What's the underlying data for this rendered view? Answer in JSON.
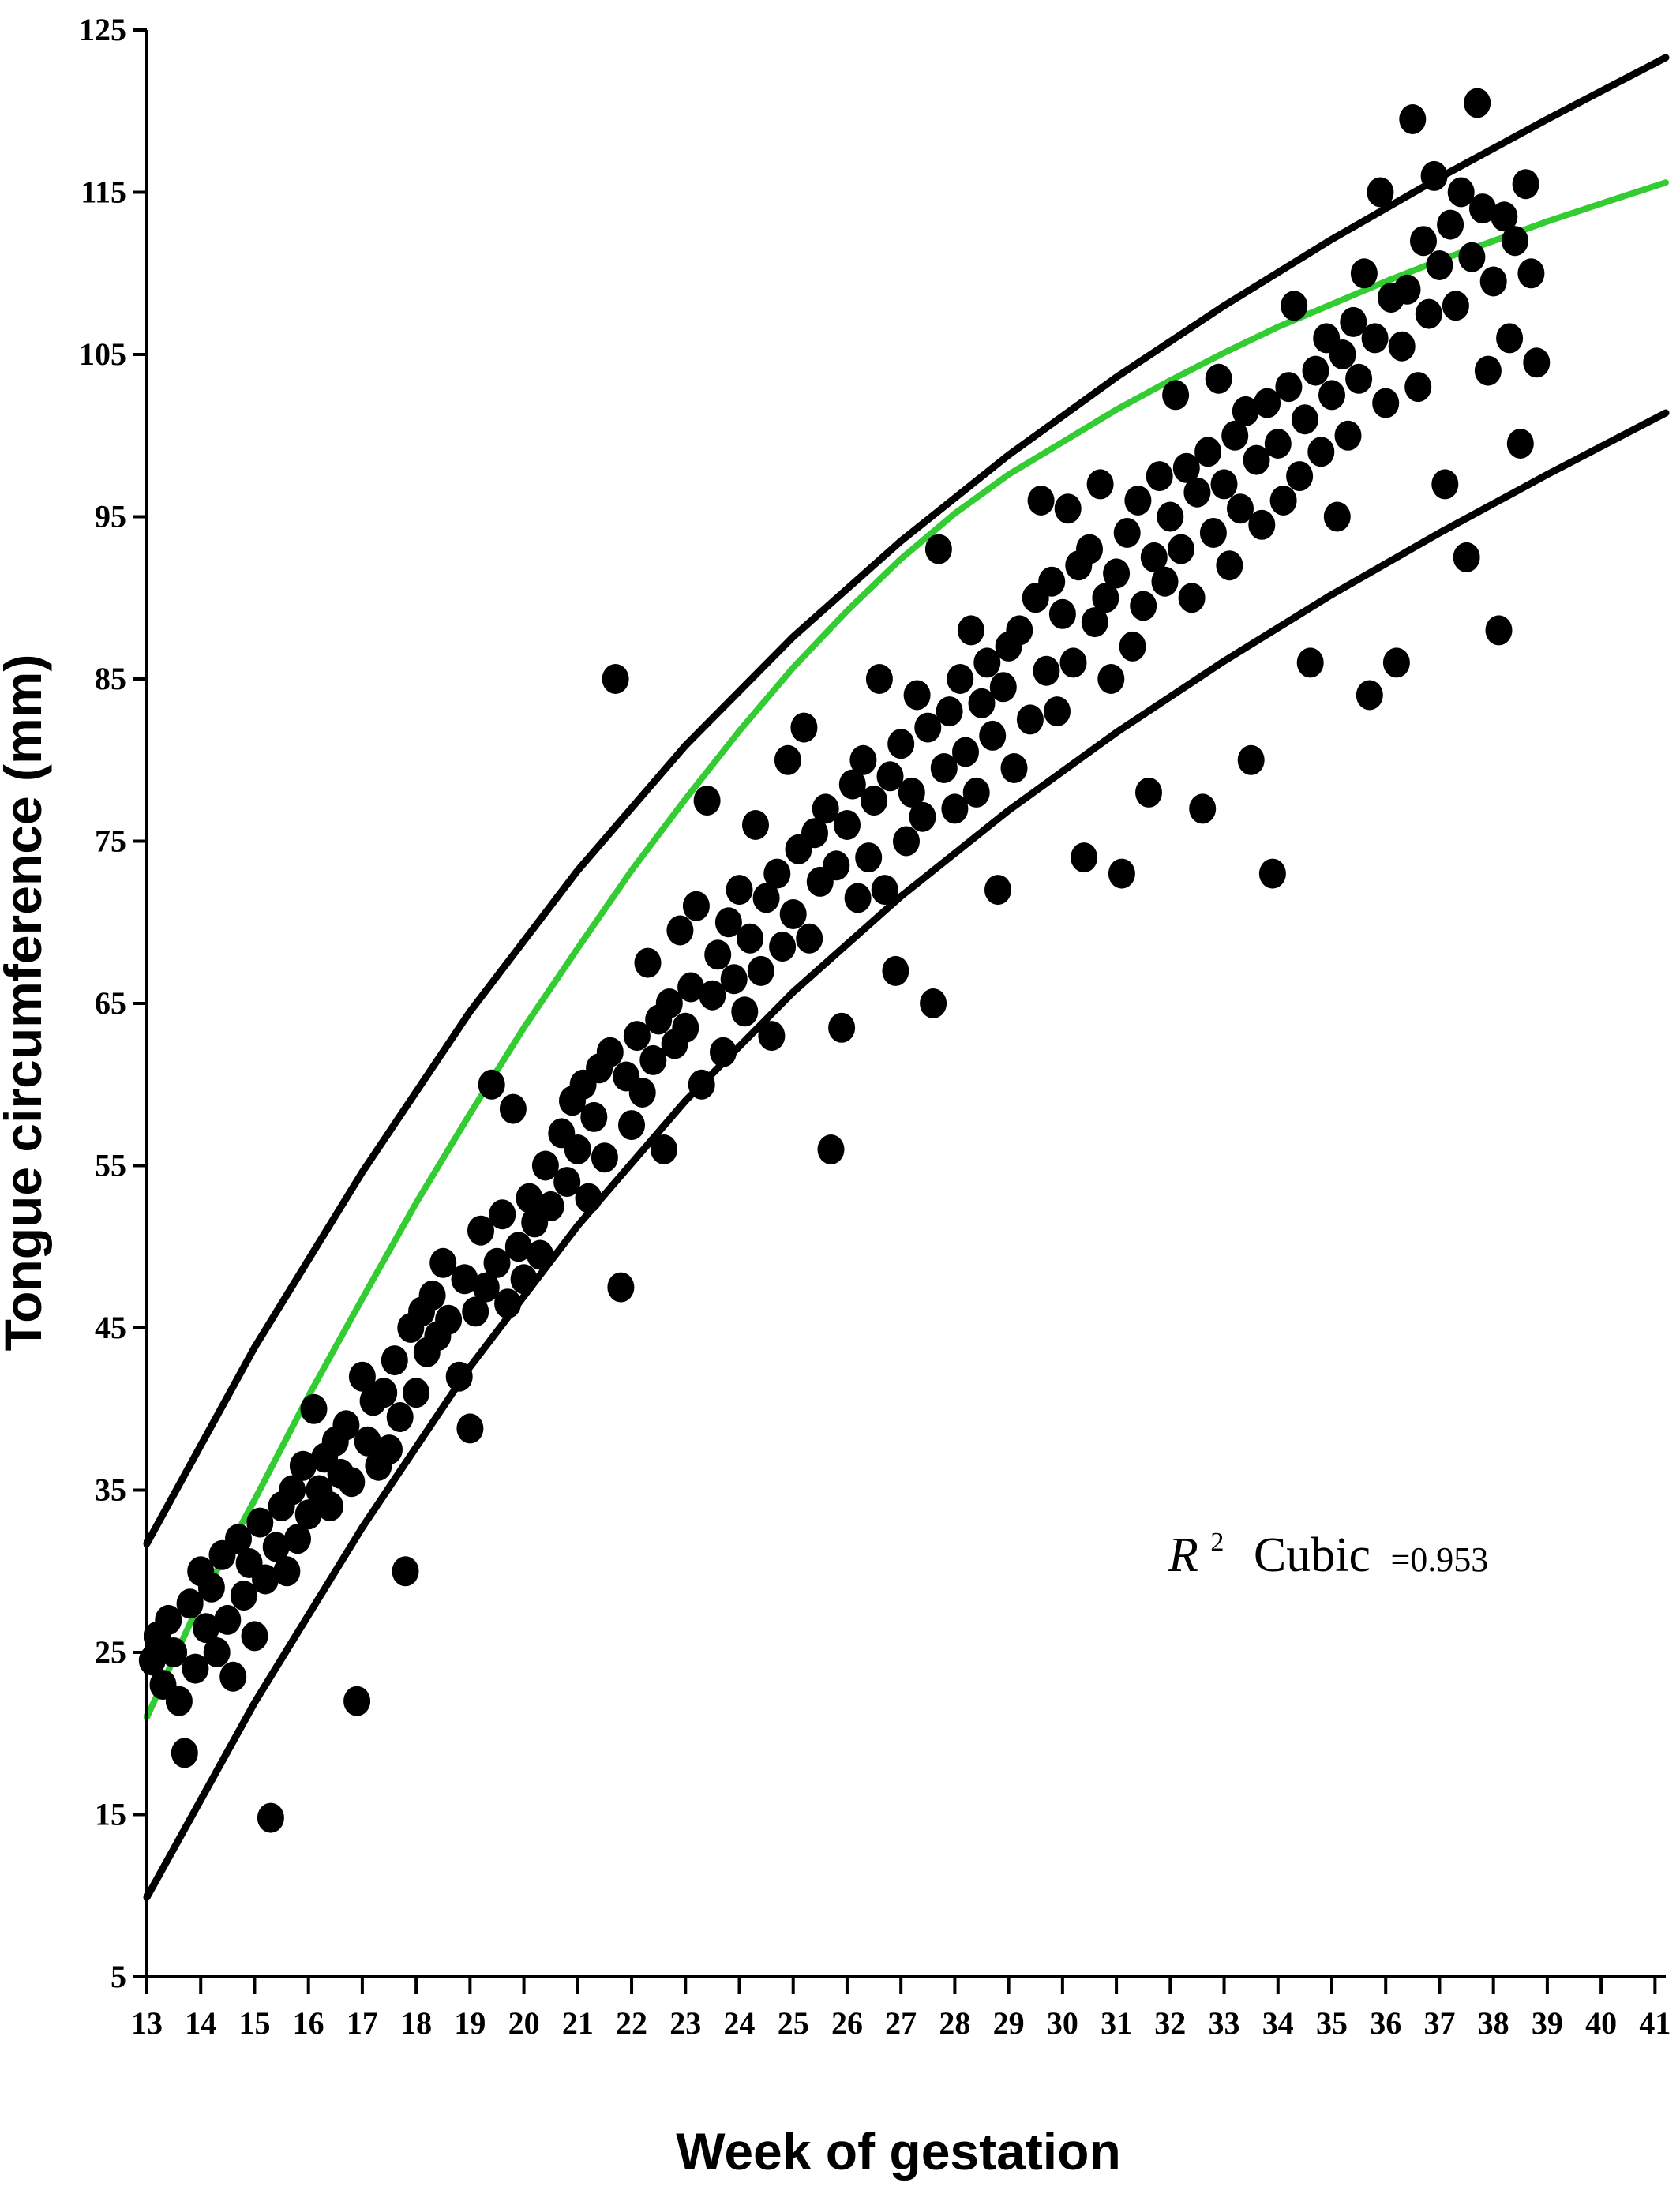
{
  "chart_data": {
    "type": "scatter",
    "title": "",
    "xlabel": "Week of gestation",
    "ylabel": "Tongue circumference (mm)",
    "xlim": [
      13,
      41.2
    ],
    "ylim": [
      5,
      125
    ],
    "x_ticks": [
      13,
      14,
      15,
      16,
      17,
      18,
      19,
      20,
      21,
      22,
      23,
      24,
      25,
      26,
      27,
      28,
      29,
      30,
      31,
      32,
      33,
      34,
      35,
      36,
      37,
      38,
      39,
      40,
      41
    ],
    "y_ticks": [
      5,
      15,
      25,
      35,
      45,
      55,
      65,
      75,
      85,
      95,
      105,
      115,
      125
    ],
    "grid": false,
    "legend": "none",
    "annotation": {
      "r_symbol": "R",
      "superscript": "2",
      "label": "Cubic",
      "value": "=0.953"
    },
    "colors": {
      "points": "#000000",
      "fit_line": "#33cc33",
      "bounds": "#000000"
    },
    "series": [
      {
        "type": "line",
        "role": "cubic fit",
        "color": "#33cc33",
        "x": [
          13,
          14,
          15,
          16,
          17,
          18,
          19,
          20,
          21,
          22,
          23,
          24,
          25,
          26,
          27,
          28,
          29,
          30,
          31,
          32,
          33,
          34,
          35,
          36,
          37,
          38,
          39,
          40,
          41.2
        ],
        "y": [
          21,
          28.2,
          34.4,
          40.8,
          46.8,
          52.7,
          58.2,
          63.5,
          68.4,
          73.2,
          77.6,
          81.8,
          85.7,
          89.2,
          92.4,
          95.2,
          97.6,
          99.6,
          101.6,
          103.4,
          105.1,
          106.7,
          108.1,
          109.5,
          110.8,
          112.0,
          113.2,
          114.3,
          115.6
        ]
      },
      {
        "type": "line",
        "role": "upper bound",
        "color": "#000000",
        "x": [
          13,
          15,
          17,
          19,
          21,
          23,
          25,
          27,
          29,
          31,
          33,
          35,
          37,
          39,
          41.2
        ],
        "y": [
          31.7,
          43.8,
          54.6,
          64.5,
          73.2,
          80.9,
          87.6,
          93.5,
          98.8,
          103.6,
          108.0,
          112.1,
          115.9,
          119.5,
          123.3
        ]
      },
      {
        "type": "line",
        "role": "lower bound",
        "color": "#000000",
        "x": [
          13,
          15,
          17,
          19,
          21,
          23,
          25,
          27,
          29,
          31,
          33,
          35,
          37,
          39,
          41.2
        ],
        "y": [
          9.9,
          21.9,
          32.7,
          42.6,
          51.3,
          59.0,
          65.7,
          71.6,
          76.9,
          81.7,
          86.1,
          90.2,
          94.0,
          97.6,
          101.4
        ]
      },
      {
        "type": "scatter",
        "role": "observations",
        "color": "#000000",
        "points": [
          [
            13.1,
            24.5
          ],
          [
            13.2,
            26
          ],
          [
            13.3,
            23
          ],
          [
            13.4,
            27
          ],
          [
            13.5,
            25
          ],
          [
            13.6,
            22
          ],
          [
            13.7,
            18.8
          ],
          [
            13.8,
            28
          ],
          [
            13.9,
            24
          ],
          [
            14.0,
            30
          ],
          [
            14.1,
            26.5
          ],
          [
            14.2,
            29
          ],
          [
            14.3,
            25
          ],
          [
            14.4,
            31
          ],
          [
            14.5,
            27
          ],
          [
            14.6,
            23.5
          ],
          [
            14.7,
            32
          ],
          [
            14.8,
            28.5
          ],
          [
            14.9,
            30.5
          ],
          [
            15.0,
            26
          ],
          [
            15.1,
            33
          ],
          [
            15.2,
            29.5
          ],
          [
            15.3,
            14.8
          ],
          [
            15.4,
            31.5
          ],
          [
            15.5,
            34
          ],
          [
            15.6,
            30
          ],
          [
            15.7,
            35
          ],
          [
            15.8,
            32
          ],
          [
            15.9,
            36.5
          ],
          [
            16.0,
            33.5
          ],
          [
            16.1,
            40
          ],
          [
            16.2,
            35
          ],
          [
            16.3,
            37
          ],
          [
            16.4,
            34
          ],
          [
            16.5,
            38
          ],
          [
            16.6,
            36
          ],
          [
            16.7,
            39
          ],
          [
            16.8,
            35.5
          ],
          [
            16.9,
            22
          ],
          [
            17.0,
            42
          ],
          [
            17.1,
            38
          ],
          [
            17.2,
            40.5
          ],
          [
            17.3,
            36.5
          ],
          [
            17.4,
            41
          ],
          [
            17.5,
            37.5
          ],
          [
            17.6,
            43
          ],
          [
            17.7,
            39.5
          ],
          [
            17.8,
            30
          ],
          [
            17.9,
            45
          ],
          [
            18.0,
            41
          ],
          [
            18.1,
            46
          ],
          [
            18.2,
            43.5
          ],
          [
            18.3,
            47
          ],
          [
            18.4,
            44.5
          ],
          [
            18.5,
            49
          ],
          [
            18.6,
            45.5
          ],
          [
            18.8,
            42
          ],
          [
            18.9,
            48
          ],
          [
            19.0,
            38.8
          ],
          [
            19.1,
            46
          ],
          [
            19.2,
            51
          ],
          [
            19.3,
            47.5
          ],
          [
            19.4,
            60
          ],
          [
            19.5,
            49
          ],
          [
            19.6,
            52
          ],
          [
            19.7,
            46.5
          ],
          [
            19.8,
            58.5
          ],
          [
            19.9,
            50
          ],
          [
            20.0,
            48
          ],
          [
            20.1,
            53
          ],
          [
            20.2,
            51.5
          ],
          [
            20.3,
            49.5
          ],
          [
            20.4,
            55
          ],
          [
            20.5,
            52.5
          ],
          [
            20.7,
            57
          ],
          [
            20.8,
            54
          ],
          [
            20.9,
            59
          ],
          [
            21.0,
            56
          ],
          [
            21.1,
            60
          ],
          [
            21.2,
            53
          ],
          [
            21.3,
            58
          ],
          [
            21.4,
            61
          ],
          [
            21.5,
            55.5
          ],
          [
            21.6,
            62
          ],
          [
            21.7,
            85
          ],
          [
            21.8,
            47.5
          ],
          [
            21.9,
            60.5
          ],
          [
            22.0,
            57.5
          ],
          [
            22.1,
            63
          ],
          [
            22.2,
            59.5
          ],
          [
            22.3,
            67.5
          ],
          [
            22.4,
            61.5
          ],
          [
            22.5,
            64
          ],
          [
            22.6,
            56
          ],
          [
            22.7,
            65
          ],
          [
            22.8,
            62.5
          ],
          [
            22.9,
            69.5
          ],
          [
            23.0,
            63.5
          ],
          [
            23.1,
            66
          ],
          [
            23.2,
            71
          ],
          [
            23.3,
            60
          ],
          [
            23.4,
            77.5
          ],
          [
            23.5,
            65.5
          ],
          [
            23.6,
            68
          ],
          [
            23.7,
            62
          ],
          [
            23.8,
            70
          ],
          [
            23.9,
            66.5
          ],
          [
            24.0,
            72
          ],
          [
            24.1,
            64.5
          ],
          [
            24.2,
            69
          ],
          [
            24.3,
            76
          ],
          [
            24.4,
            67
          ],
          [
            24.5,
            71.5
          ],
          [
            24.6,
            63
          ],
          [
            24.7,
            73
          ],
          [
            24.8,
            68.5
          ],
          [
            24.9,
            80
          ],
          [
            25.0,
            70.5
          ],
          [
            25.1,
            74.5
          ],
          [
            25.2,
            82
          ],
          [
            25.3,
            69
          ],
          [
            25.4,
            75.5
          ],
          [
            25.5,
            72.5
          ],
          [
            25.6,
            77
          ],
          [
            25.7,
            56
          ],
          [
            25.8,
            73.5
          ],
          [
            25.9,
            63.5
          ],
          [
            26.0,
            76
          ],
          [
            26.1,
            78.5
          ],
          [
            26.2,
            71.5
          ],
          [
            26.3,
            80
          ],
          [
            26.4,
            74
          ],
          [
            26.5,
            77.5
          ],
          [
            26.6,
            85
          ],
          [
            26.7,
            72
          ],
          [
            26.8,
            79
          ],
          [
            26.9,
            67
          ],
          [
            27.0,
            81
          ],
          [
            27.1,
            75
          ],
          [
            27.2,
            78
          ],
          [
            27.3,
            84
          ],
          [
            27.4,
            76.5
          ],
          [
            27.5,
            82
          ],
          [
            27.6,
            65
          ],
          [
            27.7,
            93
          ],
          [
            27.8,
            79.5
          ],
          [
            27.9,
            83
          ],
          [
            28.0,
            77
          ],
          [
            28.1,
            85
          ],
          [
            28.2,
            80.5
          ],
          [
            28.3,
            88
          ],
          [
            28.4,
            78
          ],
          [
            28.5,
            83.5
          ],
          [
            28.6,
            86
          ],
          [
            28.7,
            81.5
          ],
          [
            28.8,
            72
          ],
          [
            28.9,
            84.5
          ],
          [
            29.0,
            87
          ],
          [
            29.1,
            79.5
          ],
          [
            29.2,
            88
          ],
          [
            29.4,
            82.5
          ],
          [
            29.5,
            90
          ],
          [
            29.6,
            96
          ],
          [
            29.7,
            85.5
          ],
          [
            29.8,
            91
          ],
          [
            29.9,
            83
          ],
          [
            30.0,
            89
          ],
          [
            30.1,
            95.5
          ],
          [
            30.2,
            86
          ],
          [
            30.3,
            92
          ],
          [
            30.4,
            74
          ],
          [
            30.5,
            93
          ],
          [
            30.6,
            88.5
          ],
          [
            30.7,
            97
          ],
          [
            30.8,
            90
          ],
          [
            30.9,
            85
          ],
          [
            31.0,
            91.5
          ],
          [
            31.1,
            73
          ],
          [
            31.2,
            94
          ],
          [
            31.3,
            87
          ],
          [
            31.4,
            96
          ],
          [
            31.5,
            89.5
          ],
          [
            31.6,
            78
          ],
          [
            31.7,
            92.5
          ],
          [
            31.8,
            97.5
          ],
          [
            31.9,
            91
          ],
          [
            32.0,
            95
          ],
          [
            32.1,
            102.5
          ],
          [
            32.2,
            93
          ],
          [
            32.3,
            98
          ],
          [
            32.4,
            90
          ],
          [
            32.5,
            96.5
          ],
          [
            32.6,
            77
          ],
          [
            32.7,
            99
          ],
          [
            32.8,
            94
          ],
          [
            32.9,
            103.5
          ],
          [
            33.0,
            97
          ],
          [
            33.1,
            92
          ],
          [
            33.2,
            100
          ],
          [
            33.3,
            95.5
          ],
          [
            33.4,
            101.5
          ],
          [
            33.5,
            80
          ],
          [
            33.6,
            98.5
          ],
          [
            33.7,
            94.5
          ],
          [
            33.8,
            102
          ],
          [
            33.9,
            73
          ],
          [
            34.0,
            99.5
          ],
          [
            34.1,
            96
          ],
          [
            34.2,
            103
          ],
          [
            34.3,
            108
          ],
          [
            34.4,
            97.5
          ],
          [
            34.5,
            101
          ],
          [
            34.6,
            86
          ],
          [
            34.7,
            104
          ],
          [
            34.8,
            99
          ],
          [
            34.9,
            106
          ],
          [
            35.0,
            102.5
          ],
          [
            35.1,
            95
          ],
          [
            35.2,
            105
          ],
          [
            35.3,
            100
          ],
          [
            35.4,
            107
          ],
          [
            35.5,
            103.5
          ],
          [
            35.6,
            110
          ],
          [
            35.7,
            84
          ],
          [
            35.8,
            106
          ],
          [
            35.9,
            115
          ],
          [
            36.0,
            102
          ],
          [
            36.1,
            108.5
          ],
          [
            36.2,
            86
          ],
          [
            36.3,
            105.5
          ],
          [
            36.4,
            109
          ],
          [
            36.5,
            119.5
          ],
          [
            36.6,
            103
          ],
          [
            36.7,
            112
          ],
          [
            36.8,
            107.5
          ],
          [
            36.9,
            116
          ],
          [
            37.0,
            110.5
          ],
          [
            37.1,
            97
          ],
          [
            37.2,
            113
          ],
          [
            37.3,
            108
          ],
          [
            37.4,
            115
          ],
          [
            37.5,
            92.5
          ],
          [
            37.6,
            111
          ],
          [
            37.7,
            120.5
          ],
          [
            37.8,
            114
          ],
          [
            37.9,
            104
          ],
          [
            38.0,
            109.5
          ],
          [
            38.1,
            88
          ],
          [
            38.2,
            113.5
          ],
          [
            38.3,
            106
          ],
          [
            38.4,
            112
          ],
          [
            38.5,
            99.5
          ],
          [
            38.6,
            115.5
          ],
          [
            38.7,
            110
          ],
          [
            38.8,
            104.5
          ]
        ]
      }
    ]
  }
}
